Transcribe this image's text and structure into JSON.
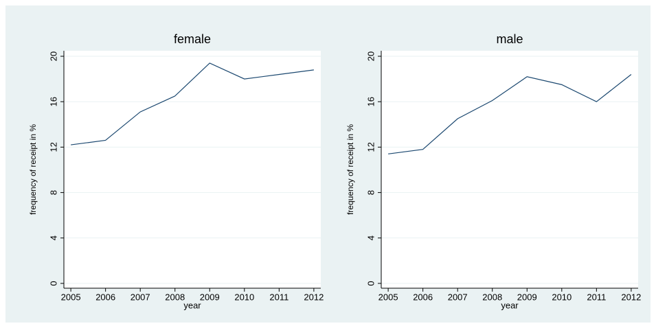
{
  "chart_data": [
    {
      "type": "line",
      "title": "female",
      "xlabel": "year",
      "ylabel": "frequency of receipt in %",
      "x": [
        2005,
        2006,
        2007,
        2008,
        2009,
        2010,
        2011,
        2012
      ],
      "values": [
        12.2,
        12.6,
        15.1,
        16.5,
        19.4,
        18.0,
        18.4,
        18.8
      ],
      "color": "#1a476f",
      "xlim": [
        2004.8,
        2012.2
      ],
      "xticks": [
        2005,
        2006,
        2007,
        2008,
        2009,
        2010,
        2011,
        2012
      ],
      "ylim": [
        0,
        20
      ],
      "yticks": [
        0,
        4,
        8,
        12,
        16,
        20
      ],
      "grid": true
    },
    {
      "type": "line",
      "title": "male",
      "xlabel": "year",
      "ylabel": "frequency of receipt in %",
      "x": [
        2005,
        2006,
        2007,
        2008,
        2009,
        2010,
        2011,
        2012
      ],
      "values": [
        11.4,
        11.8,
        14.5,
        16.1,
        18.2,
        17.5,
        16.0,
        18.4
      ],
      "color": "#1a476f",
      "xlim": [
        2004.8,
        2012.2
      ],
      "xticks": [
        2005,
        2006,
        2007,
        2008,
        2009,
        2010,
        2011,
        2012
      ],
      "ylim": [
        0,
        20
      ],
      "yticks": [
        0,
        4,
        8,
        12,
        16,
        20
      ],
      "grid": true
    }
  ]
}
